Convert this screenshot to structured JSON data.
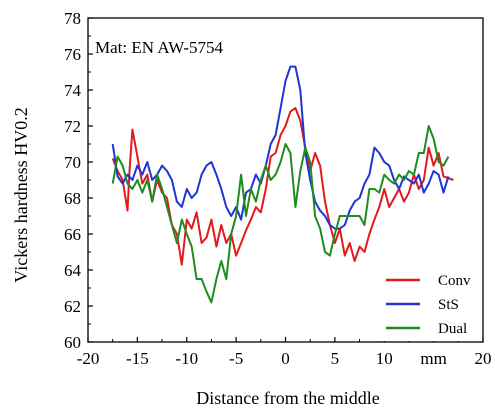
{
  "chart_data": {
    "type": "line",
    "annotation": "Mat: EN AW-5754",
    "xlabel": "Distance from the middle",
    "ylabel": "Vickers hardness HV0.2",
    "x_unit_label": "mm",
    "xlim": [
      -20,
      20
    ],
    "ylim": [
      60,
      78
    ],
    "x_ticks": [
      -20,
      -15,
      -10,
      -5,
      0,
      5,
      10,
      15,
      20
    ],
    "x_tick_labels": [
      "-20",
      "-15",
      "-10",
      "-5",
      "0",
      "5",
      "10",
      "mm",
      "20"
    ],
    "y_ticks": [
      60,
      62,
      64,
      66,
      68,
      70,
      72,
      74,
      76,
      78
    ],
    "y_tick_labels": [
      "60",
      "62",
      "64",
      "66",
      "68",
      "70",
      "72",
      "74",
      "76",
      "78"
    ],
    "grid": false,
    "legend_position": "bottom-right",
    "series": [
      {
        "name": "Conv",
        "color": "#e31a1c",
        "points": [
          [
            -17.5,
            70.2
          ],
          [
            -17.0,
            69.5
          ],
          [
            -16.5,
            69.0
          ],
          [
            -16.0,
            67.3
          ],
          [
            -15.8,
            69.5
          ],
          [
            -15.5,
            71.8
          ],
          [
            -15.0,
            70.3
          ],
          [
            -14.5,
            68.8
          ],
          [
            -14.0,
            69.3
          ],
          [
            -13.5,
            67.8
          ],
          [
            -13.0,
            69.0
          ],
          [
            -12.5,
            68.3
          ],
          [
            -12.0,
            68.0
          ],
          [
            -11.5,
            66.5
          ],
          [
            -11.0,
            66.0
          ],
          [
            -10.5,
            64.3
          ],
          [
            -10.0,
            66.8
          ],
          [
            -9.5,
            66.3
          ],
          [
            -9.0,
            67.2
          ],
          [
            -8.5,
            65.5
          ],
          [
            -8.0,
            65.8
          ],
          [
            -7.5,
            66.8
          ],
          [
            -7.0,
            65.3
          ],
          [
            -6.5,
            66.5
          ],
          [
            -6.0,
            65.5
          ],
          [
            -5.5,
            66.0
          ],
          [
            -5.0,
            64.8
          ],
          [
            -4.5,
            65.5
          ],
          [
            -4.0,
            66.2
          ],
          [
            -3.5,
            66.8
          ],
          [
            -3.0,
            67.5
          ],
          [
            -2.5,
            67.2
          ],
          [
            -2.0,
            68.5
          ],
          [
            -1.5,
            70.3
          ],
          [
            -1.0,
            70.5
          ],
          [
            -0.5,
            71.5
          ],
          [
            0.0,
            72.0
          ],
          [
            0.5,
            72.8
          ],
          [
            1.0,
            73.0
          ],
          [
            1.5,
            72.3
          ],
          [
            2.0,
            70.8
          ],
          [
            2.5,
            69.5
          ],
          [
            3.0,
            70.5
          ],
          [
            3.5,
            69.8
          ],
          [
            4.0,
            67.8
          ],
          [
            4.5,
            66.5
          ],
          [
            5.0,
            65.5
          ],
          [
            5.5,
            66.3
          ],
          [
            6.0,
            64.8
          ],
          [
            6.5,
            65.5
          ],
          [
            7.0,
            64.5
          ],
          [
            7.5,
            65.3
          ],
          [
            8.0,
            65.0
          ],
          [
            8.5,
            66.0
          ],
          [
            9.0,
            66.8
          ],
          [
            9.5,
            67.5
          ],
          [
            10.0,
            68.5
          ],
          [
            10.5,
            67.5
          ],
          [
            11.0,
            68.0
          ],
          [
            11.5,
            68.5
          ],
          [
            12.0,
            67.8
          ],
          [
            12.5,
            68.3
          ],
          [
            13.0,
            69.3
          ],
          [
            13.5,
            68.5
          ],
          [
            14.0,
            69.0
          ],
          [
            14.5,
            70.8
          ],
          [
            15.0,
            69.8
          ],
          [
            15.5,
            70.5
          ],
          [
            16.0,
            69.2
          ],
          [
            17.0,
            69.0
          ]
        ]
      },
      {
        "name": "StS",
        "color": "#1f35d6",
        "points": [
          [
            -17.5,
            71.0
          ],
          [
            -17.0,
            69.2
          ],
          [
            -16.5,
            68.8
          ],
          [
            -16.0,
            69.3
          ],
          [
            -15.5,
            69.0
          ],
          [
            -15.0,
            69.8
          ],
          [
            -14.5,
            69.3
          ],
          [
            -14.0,
            70.0
          ],
          [
            -13.5,
            69.0
          ],
          [
            -13.0,
            69.3
          ],
          [
            -12.5,
            69.8
          ],
          [
            -12.0,
            69.5
          ],
          [
            -11.5,
            69.0
          ],
          [
            -11.0,
            67.8
          ],
          [
            -10.5,
            67.5
          ],
          [
            -10.0,
            68.5
          ],
          [
            -9.5,
            68.0
          ],
          [
            -9.0,
            68.3
          ],
          [
            -8.5,
            69.3
          ],
          [
            -8.0,
            69.8
          ],
          [
            -7.5,
            70.0
          ],
          [
            -7.0,
            69.3
          ],
          [
            -6.5,
            68.5
          ],
          [
            -6.0,
            67.5
          ],
          [
            -5.5,
            67.0
          ],
          [
            -5.0,
            67.5
          ],
          [
            -4.5,
            66.8
          ],
          [
            -4.0,
            68.3
          ],
          [
            -3.5,
            68.5
          ],
          [
            -3.0,
            69.3
          ],
          [
            -2.5,
            68.8
          ],
          [
            -2.0,
            69.8
          ],
          [
            -1.5,
            71.0
          ],
          [
            -1.0,
            71.5
          ],
          [
            -0.5,
            73.0
          ],
          [
            0.0,
            74.5
          ],
          [
            0.5,
            75.3
          ],
          [
            1.0,
            75.3
          ],
          [
            1.5,
            74.0
          ],
          [
            2.0,
            70.5
          ],
          [
            2.5,
            69.0
          ],
          [
            3.0,
            67.8
          ],
          [
            3.5,
            67.3
          ],
          [
            4.0,
            67.0
          ],
          [
            4.5,
            66.5
          ],
          [
            5.0,
            66.3
          ],
          [
            5.5,
            66.3
          ],
          [
            6.0,
            66.5
          ],
          [
            6.5,
            67.3
          ],
          [
            7.0,
            67.8
          ],
          [
            7.5,
            68.0
          ],
          [
            8.0,
            68.8
          ],
          [
            8.5,
            69.3
          ],
          [
            9.0,
            70.8
          ],
          [
            9.5,
            70.5
          ],
          [
            10.0,
            70.0
          ],
          [
            10.5,
            69.8
          ],
          [
            11.0,
            69.0
          ],
          [
            11.5,
            68.5
          ],
          [
            12.0,
            69.2
          ],
          [
            12.5,
            69.0
          ],
          [
            13.0,
            68.8
          ],
          [
            13.5,
            69.3
          ],
          [
            14.0,
            68.3
          ],
          [
            14.5,
            68.8
          ],
          [
            15.0,
            69.5
          ],
          [
            15.5,
            69.3
          ],
          [
            16.0,
            68.3
          ],
          [
            16.5,
            69.2
          ]
        ]
      },
      {
        "name": "Dual",
        "color": "#1e8c1e",
        "points": [
          [
            -17.5,
            68.8
          ],
          [
            -17.0,
            70.3
          ],
          [
            -16.5,
            69.8
          ],
          [
            -16.0,
            68.8
          ],
          [
            -15.5,
            68.5
          ],
          [
            -15.0,
            69.0
          ],
          [
            -14.5,
            68.3
          ],
          [
            -14.0,
            69.0
          ],
          [
            -13.5,
            67.8
          ],
          [
            -13.0,
            69.3
          ],
          [
            -12.5,
            68.5
          ],
          [
            -12.0,
            67.5
          ],
          [
            -11.5,
            66.5
          ],
          [
            -11.0,
            65.5
          ],
          [
            -10.5,
            66.8
          ],
          [
            -10.0,
            66.0
          ],
          [
            -9.5,
            65.3
          ],
          [
            -9.0,
            63.5
          ],
          [
            -8.5,
            63.5
          ],
          [
            -8.0,
            62.8
          ],
          [
            -7.5,
            62.2
          ],
          [
            -7.0,
            63.5
          ],
          [
            -6.5,
            64.5
          ],
          [
            -6.0,
            63.5
          ],
          [
            -5.5,
            66.0
          ],
          [
            -5.0,
            67.0
          ],
          [
            -4.5,
            69.3
          ],
          [
            -4.0,
            67.0
          ],
          [
            -3.5,
            68.5
          ],
          [
            -3.0,
            67.8
          ],
          [
            -2.5,
            69.0
          ],
          [
            -2.0,
            69.8
          ],
          [
            -1.5,
            69.0
          ],
          [
            -1.0,
            69.3
          ],
          [
            -0.5,
            70.0
          ],
          [
            0.0,
            71.0
          ],
          [
            0.5,
            70.5
          ],
          [
            1.0,
            67.5
          ],
          [
            1.5,
            69.5
          ],
          [
            2.0,
            70.8
          ],
          [
            2.5,
            70.0
          ],
          [
            3.0,
            67.0
          ],
          [
            3.5,
            66.3
          ],
          [
            4.0,
            65.0
          ],
          [
            4.5,
            64.8
          ],
          [
            5.0,
            66.0
          ],
          [
            5.5,
            67.0
          ],
          [
            6.0,
            67.0
          ],
          [
            6.5,
            67.0
          ],
          [
            7.0,
            67.0
          ],
          [
            7.5,
            67.0
          ],
          [
            8.0,
            66.5
          ],
          [
            8.5,
            68.5
          ],
          [
            9.0,
            68.5
          ],
          [
            9.5,
            68.3
          ],
          [
            10.0,
            69.3
          ],
          [
            10.5,
            69.0
          ],
          [
            11.0,
            68.8
          ],
          [
            11.5,
            69.3
          ],
          [
            12.0,
            69.0
          ],
          [
            12.5,
            69.5
          ],
          [
            13.0,
            69.3
          ],
          [
            13.5,
            70.5
          ],
          [
            14.0,
            70.5
          ],
          [
            14.5,
            72.0
          ],
          [
            15.0,
            71.3
          ],
          [
            15.5,
            70.0
          ],
          [
            16.0,
            69.8
          ],
          [
            16.5,
            70.3
          ]
        ]
      }
    ]
  }
}
